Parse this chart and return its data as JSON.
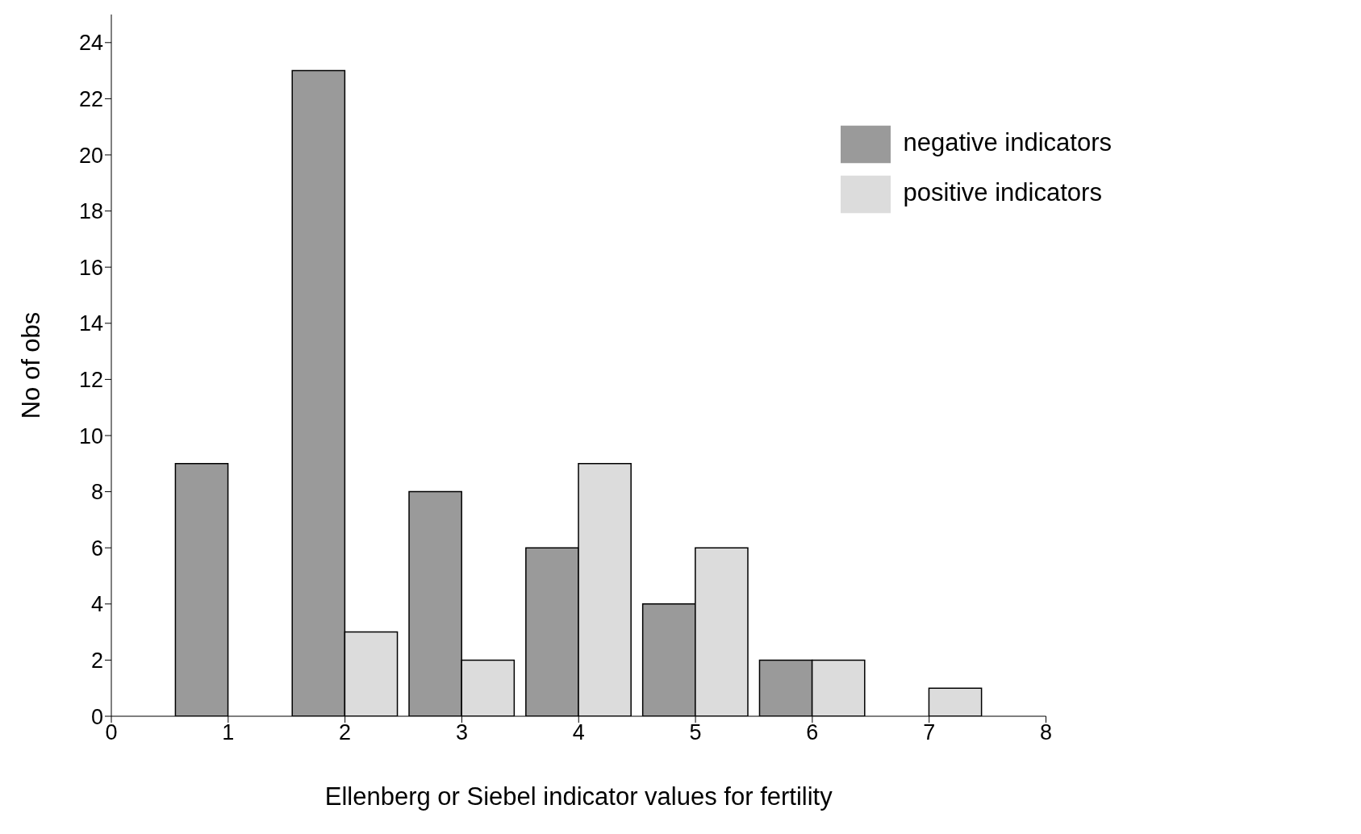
{
  "chart_data": {
    "type": "bar",
    "xlabel": "Ellenberg or Siebel indicator values for fertility",
    "ylabel": "No of obs",
    "x": [
      1,
      2,
      3,
      4,
      5,
      6,
      7
    ],
    "series": [
      {
        "name": "negative indicators",
        "color": "#9a9a9a",
        "values": [
          9,
          23,
          8,
          6,
          4,
          2,
          0
        ]
      },
      {
        "name": "positive indicators",
        "color": "#dcdcdc",
        "values": [
          0,
          3,
          2,
          9,
          6,
          2,
          1
        ]
      }
    ],
    "xlim": [
      0,
      8
    ],
    "xticks": [
      0,
      1,
      2,
      3,
      4,
      5,
      6,
      7,
      8
    ],
    "ylim": [
      0,
      25
    ],
    "yticks": [
      0,
      2,
      4,
      6,
      8,
      10,
      12,
      14,
      16,
      18,
      20,
      22,
      24
    ],
    "grid": false,
    "legend": "top right"
  }
}
